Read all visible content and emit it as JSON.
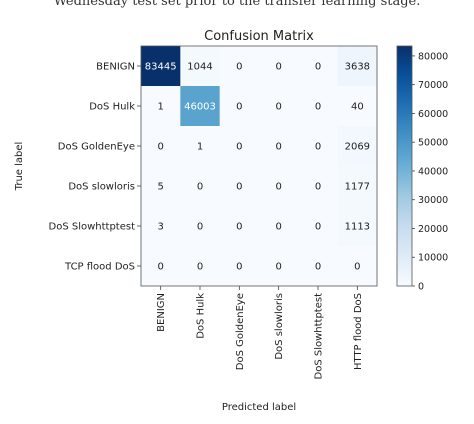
{
  "caption_fragment": "Wednesday test set prior to the transfer learning stage.",
  "colors": {
    "low": "#f7fbff",
    "high": "#08306b",
    "text_light": "#ffffff",
    "text_dark": "#222222"
  },
  "chart_data": {
    "type": "heatmap",
    "title": "Confusion Matrix",
    "xlabel": "Predicted label",
    "ylabel": "True label",
    "row_labels": [
      "BENIGN",
      "DoS Hulk",
      "DoS GoldenEye",
      "DoS slowloris",
      "DoS Slowhttptest",
      "TCP flood DoS"
    ],
    "col_labels": [
      "BENIGN",
      "DoS Hulk",
      "DoS GoldenEye",
      "DoS slowloris",
      "DoS Slowhttptest",
      "HTTP flood DoS"
    ],
    "values": [
      [
        83445,
        1044,
        0,
        0,
        0,
        3638
      ],
      [
        1,
        46003,
        0,
        0,
        0,
        40
      ],
      [
        0,
        1,
        0,
        0,
        0,
        2069
      ],
      [
        5,
        0,
        0,
        0,
        0,
        1177
      ],
      [
        3,
        0,
        0,
        0,
        0,
        1113
      ],
      [
        0,
        0,
        0,
        0,
        0,
        0
      ]
    ],
    "colorbar": {
      "range": [
        0,
        83445
      ],
      "ticks": [
        0,
        10000,
        20000,
        30000,
        40000,
        50000,
        60000,
        70000,
        80000
      ],
      "tick_labels": [
        "0",
        "10000",
        "20000",
        "30000",
        "40000",
        "50000",
        "60000",
        "70000",
        "80000"
      ]
    }
  }
}
